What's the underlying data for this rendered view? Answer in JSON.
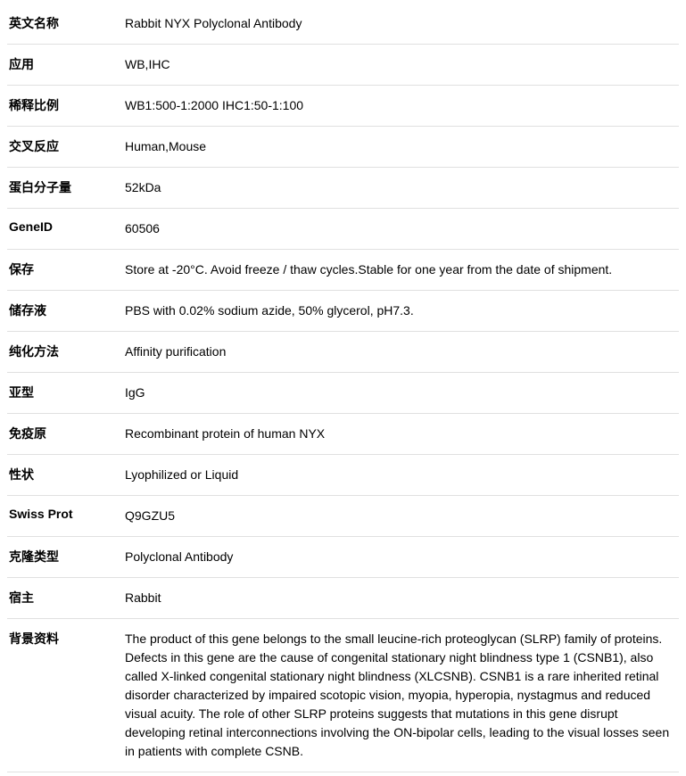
{
  "rows": [
    {
      "label": "英文名称",
      "value": "Rabbit NYX Polyclonal Antibody"
    },
    {
      "label": "应用",
      "value": "WB,IHC"
    },
    {
      "label": "稀释比例",
      "value": "WB1:500-1:2000 IHC1:50-1:100"
    },
    {
      "label": "交叉反应",
      "value": "Human,Mouse"
    },
    {
      "label": "蛋白分子量",
      "value": "52kDa"
    },
    {
      "label": "GeneID",
      "value": "60506"
    },
    {
      "label": "保存",
      "value": "Store at -20°C. Avoid freeze / thaw cycles.Stable for one year from the date of shipment."
    },
    {
      "label": "储存液",
      "value": "PBS with 0.02% sodium azide, 50% glycerol, pH7.3."
    },
    {
      "label": "纯化方法",
      "value": "Affinity purification"
    },
    {
      "label": "亚型",
      "value": "IgG"
    },
    {
      "label": "免疫原",
      "value": "Recombinant protein of human NYX"
    },
    {
      "label": "性状",
      "value": "Lyophilized or Liquid"
    },
    {
      "label": "Swiss Prot",
      "value": "Q9GZU5"
    },
    {
      "label": "克隆类型",
      "value": "Polyclonal Antibody"
    },
    {
      "label": "宿主",
      "value": "Rabbit"
    },
    {
      "label": "背景资料",
      "value": "The product of this gene belongs to the small leucine-rich proteoglycan (SLRP) family of proteins. Defects in this gene are the cause of congenital stationary night blindness type 1 (CSNB1), also called X-linked congenital stationary night blindness (XLCSNB). CSNB1 is a rare inherited retinal disorder characterized by impaired scotopic vision, myopia, hyperopia, nystagmus and reduced visual acuity. The role of other SLRP proteins suggests that mutations in this gene disrupt developing retinal interconnections involving the ON-bipolar cells, leading to the visual losses seen in patients with complete CSNB."
    }
  ],
  "styles": {
    "border_color": "#e0e0e0",
    "text_color": "#000000",
    "background_color": "#ffffff",
    "label_fontweight": "bold",
    "fontsize": 14,
    "label_column_width": 130
  }
}
